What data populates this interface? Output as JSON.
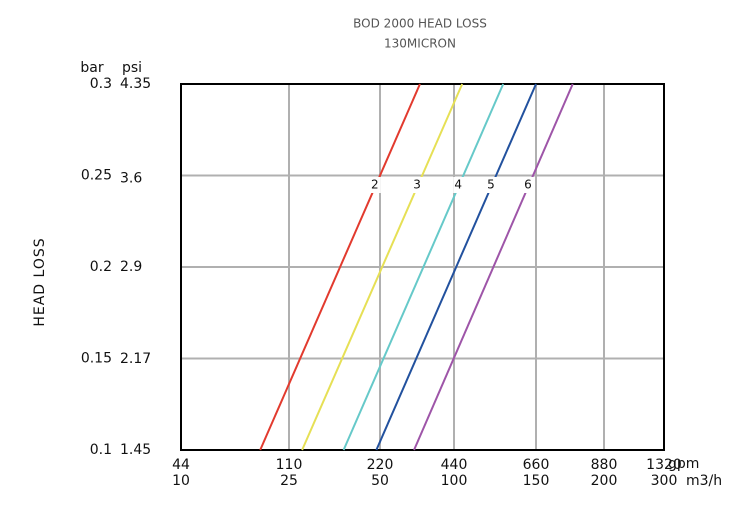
{
  "chart_data": {
    "type": "line",
    "title": "BOD 2000  HEAD LOSS",
    "subtitle": "130MICRON",
    "y_label": "HEAD LOSS",
    "y_unit": "bar",
    "y2_unit": "psi",
    "x_unit": "m3/h",
    "x2_unit": "gpm",
    "ylim": [
      0.1,
      0.3
    ],
    "yticks": [
      0.1,
      0.15,
      0.2,
      0.25,
      0.3
    ],
    "y2lim": [
      1.45,
      4.35
    ],
    "y2ticks": [
      1.45,
      2.17,
      2.9,
      3.6,
      4.35
    ],
    "xticks": [
      10,
      25,
      50,
      100,
      150,
      200,
      300
    ],
    "x2ticks": [
      44,
      110,
      220,
      440,
      660,
      880,
      1320
    ],
    "grid": true,
    "series": [
      {
        "name": "2",
        "color": "#e23a2e",
        "x": [
          21,
          77
        ],
        "values": [
          0.1,
          0.3
        ]
      },
      {
        "name": "3",
        "color": "#e6e055",
        "x": [
          28.6,
          105
        ],
        "values": [
          0.1,
          0.3
        ]
      },
      {
        "name": "4",
        "color": "#66c9c9",
        "x": [
          40,
          130
        ],
        "values": [
          0.1,
          0.3
        ]
      },
      {
        "name": "5",
        "color": "#22519e",
        "x": [
          49,
          150
        ],
        "values": [
          0.1,
          0.3
        ]
      },
      {
        "name": "6",
        "color": "#9e55a8",
        "x": [
          73,
          177
        ],
        "values": [
          0.1,
          0.3
        ]
      }
    ]
  }
}
